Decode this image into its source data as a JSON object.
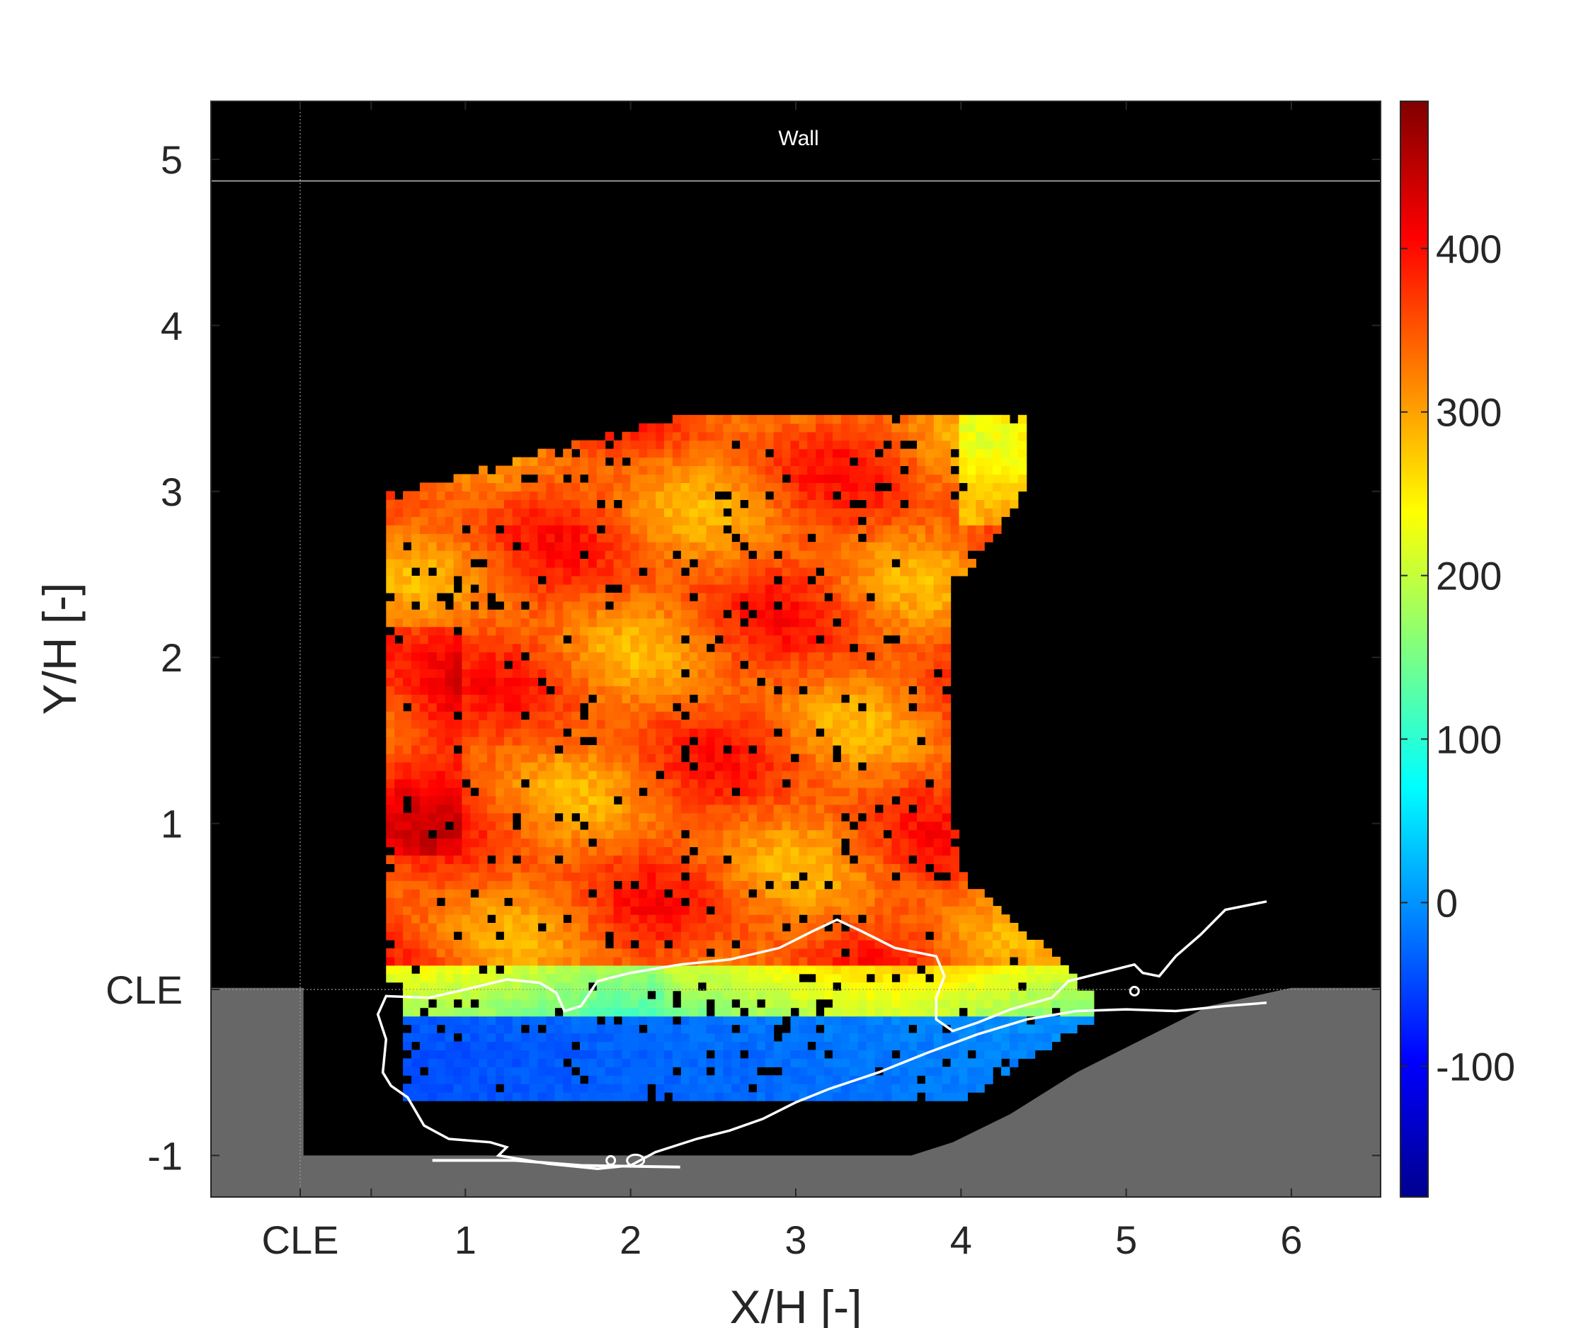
{
  "chart_data": {
    "type": "heatmap",
    "title": "",
    "xlabel": "X/H [-]",
    "ylabel": "Y/H [-]",
    "xlim": [
      -0.54,
      6.54
    ],
    "ylim": [
      -1.25,
      5.35
    ],
    "x_ticks": [
      {
        "value": 0,
        "label": "CLE"
      },
      {
        "value": 1,
        "label": "1"
      },
      {
        "value": 2,
        "label": "2"
      },
      {
        "value": 3,
        "label": "3"
      },
      {
        "value": 4,
        "label": "4"
      },
      {
        "value": 5,
        "label": "5"
      },
      {
        "value": 6,
        "label": "6"
      }
    ],
    "y_ticks": [
      {
        "value": -1,
        "label": "-1"
      },
      {
        "value": 0,
        "label": "CLE"
      },
      {
        "value": 1,
        "label": "1"
      },
      {
        "value": 2,
        "label": "2"
      },
      {
        "value": 3,
        "label": "3"
      },
      {
        "value": 4,
        "label": "4"
      },
      {
        "value": 5,
        "label": "5"
      }
    ],
    "colorbar": {
      "colormap": "jet",
      "range": [
        -180,
        490
      ],
      "ticks": [
        {
          "value": -100,
          "label": "-100"
        },
        {
          "value": 0,
          "label": "0"
        },
        {
          "value": 100,
          "label": "100"
        },
        {
          "value": 200,
          "label": "200"
        },
        {
          "value": 300,
          "label": "300"
        },
        {
          "value": 400,
          "label": "400"
        }
      ]
    },
    "wall": {
      "label": "Wall",
      "y": 4.87
    },
    "background_color": "#000000",
    "solid_region_color": "#676767",
    "contour_color": "#ffffff",
    "measured_region": {
      "x_range": [
        0.52,
        4.85
      ],
      "y_range": [
        -0.67,
        3.45
      ],
      "upper_field_value_range": [
        250,
        420
      ],
      "shear_layer_value_range": [
        100,
        220
      ],
      "recirculation_value_range": [
        -90,
        40
      ]
    }
  }
}
